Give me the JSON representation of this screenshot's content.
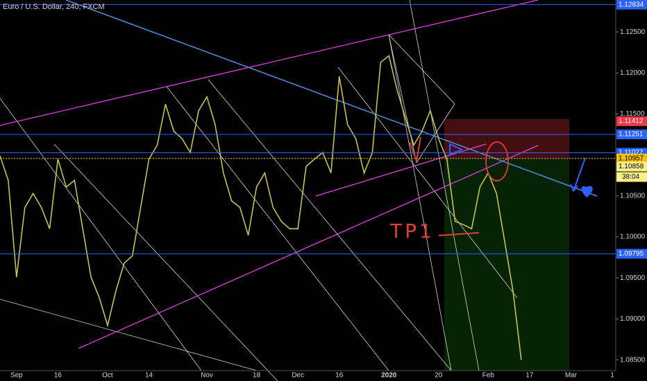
{
  "chart_data": {
    "type": "line",
    "title": "Euro / U.S. Dollar, 240, FXCM",
    "categories": [
      null,
      null,
      "Sep",
      null,
      null,
      null,
      null,
      "16",
      null,
      null,
      null,
      null,
      null,
      "Oct",
      null,
      null,
      null,
      null,
      "14",
      null,
      null,
      null,
      null,
      null,
      null,
      "Nov",
      null,
      null,
      null,
      null,
      null,
      "18",
      null,
      null,
      null,
      null,
      "Dec",
      null,
      null,
      null,
      null,
      "16",
      null,
      null,
      null,
      null,
      null,
      "2020",
      null,
      null,
      null,
      null,
      null,
      "20",
      null,
      null,
      null,
      null,
      null,
      "Feb",
      null,
      null,
      null,
      null,
      "17",
      null,
      null,
      null,
      null,
      "Mar",
      null,
      null,
      null,
      null,
      "1"
    ],
    "values": [
      1.1099,
      1.1069,
      1.0951,
      1.1036,
      1.1053,
      1.1036,
      1.101,
      1.1095,
      1.1061,
      1.1069,
      1.101,
      1.0951,
      1.0926,
      1.0892,
      1.0934,
      1.0968,
      1.0977,
      1.1036,
      1.1095,
      1.1112,
      1.1162,
      1.1129,
      1.112,
      1.1103,
      1.1154,
      1.1171,
      1.1137,
      1.1078,
      1.1044,
      1.1036,
      1.1002,
      1.1061,
      1.1078,
      1.1036,
      1.1019,
      1.101,
      1.101,
      1.1086,
      1.1095,
      1.1103,
      1.1078,
      1.1196,
      1.1137,
      1.112,
      1.1078,
      1.1103,
      1.1213,
      1.1221,
      1.1179,
      1.1145,
      1.1112,
      1.1129,
      1.1154,
      1.112,
      1.1095,
      1.1019,
      1.1015,
      1.101,
      1.1061,
      1.1078,
      1.1053,
      1.0994,
      1.0934,
      1.085,
      null,
      null,
      null,
      null,
      null,
      null,
      null,
      null,
      null,
      null,
      null
    ],
    "color": "#c9c34a",
    "ylim": [
      1.0837,
      1.1289
    ],
    "yticks": [
      {
        "value": 1.085,
        "label": "1.08500"
      },
      {
        "value": 1.09,
        "label": "1.09000"
      },
      {
        "value": 1.095,
        "label": "1.09500"
      },
      {
        "value": 1.1,
        "label": "1.10000"
      },
      {
        "value": 1.105,
        "label": "1.10500"
      },
      {
        "value": 1.115,
        "label": "1.11500"
      },
      {
        "value": 1.12,
        "label": "1.12000"
      },
      {
        "value": 1.125,
        "label": "1.12500"
      }
    ],
    "hlines": [
      {
        "value": 1.12834,
        "label": "1.12834",
        "color": "#2962ff",
        "style": "solid"
      },
      {
        "value": 1.11412,
        "label": "1.11412",
        "color": "#f23645",
        "style": "none"
      },
      {
        "value": 1.11251,
        "label": "1.11251",
        "color": "#2962ff",
        "style": "solid"
      },
      {
        "value": 1.11027,
        "label": "1.11027",
        "color": "#2962ff",
        "style": "solid"
      },
      {
        "value": 1.10957,
        "label": "1.10957",
        "color": "#f5c000",
        "style": "dotted"
      },
      {
        "value": 1.10858,
        "label": "1.10858",
        "color": "#f7f08a",
        "style": "none"
      },
      {
        "value": 1.09795,
        "label": "1.09795",
        "color": "#2962ff",
        "style": "solid"
      }
    ],
    "countdown": "38:04",
    "annotation": "TP1"
  }
}
